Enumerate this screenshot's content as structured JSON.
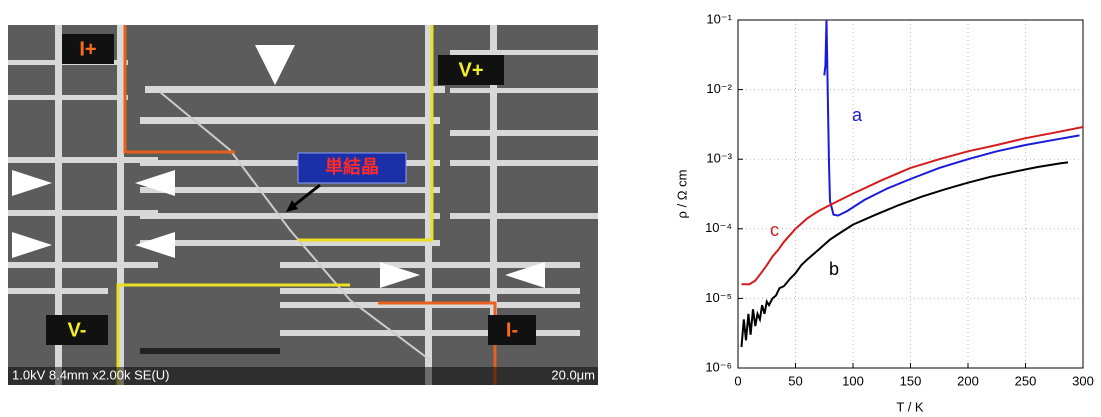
{
  "image": {
    "labels": [
      "I+",
      "V+",
      "V-",
      "I-"
    ],
    "callout": "単結晶",
    "footer": "1.0kV 8.4mm x2.00k SE(U)",
    "scale": "20.0μm"
  },
  "chart_data": {
    "type": "line",
    "log_y": true,
    "grid": true,
    "xlabel": "T / K",
    "ylabel": "ρ / Ω cm",
    "xlim": [
      0,
      300
    ],
    "xticks": [
      0,
      50,
      100,
      150,
      200,
      250,
      300
    ],
    "ylim": [
      1e-06,
      0.1
    ],
    "yticks": [
      {
        "value": 1e-06,
        "label": "10⁻⁶"
      },
      {
        "value": 1e-05,
        "label": "10⁻⁵"
      },
      {
        "value": 0.0001,
        "label": "10⁻⁴"
      },
      {
        "value": 0.001,
        "label": "10⁻³"
      },
      {
        "value": 0.01,
        "label": "10⁻²"
      },
      {
        "value": 0.1,
        "label": "10⁻¹"
      }
    ],
    "series": [
      {
        "name": "a",
        "color": "#1a1adb",
        "x": [
          75,
          76,
          77,
          78,
          79,
          80,
          83,
          87,
          95,
          110,
          130,
          150,
          175,
          200,
          225,
          250,
          275,
          297
        ],
        "values": [
          0.016,
          0.022,
          0.1,
          0.01,
          0.001,
          0.00025,
          0.00016,
          0.000155,
          0.00018,
          0.00026,
          0.00038,
          0.00052,
          0.00075,
          0.001,
          0.0013,
          0.0016,
          0.0019,
          0.0022
        ]
      },
      {
        "name": "b",
        "color": "#000000",
        "x": [
          3,
          5,
          7,
          9,
          11,
          13,
          15,
          17,
          19,
          21,
          23,
          25,
          27,
          30,
          33,
          36,
          40,
          45,
          50,
          55,
          60,
          70,
          80,
          90,
          100,
          120,
          140,
          160,
          180,
          200,
          220,
          240,
          260,
          280,
          287
        ],
        "values": [
          2e-06,
          5e-06,
          2.5e-06,
          6e-06,
          3e-06,
          7e-06,
          4e-06,
          6e-06,
          5e-06,
          8e-06,
          6e-06,
          9e-06,
          8e-06,
          1e-05,
          1.1e-05,
          1.4e-05,
          1.5e-05,
          1.9e-05,
          2.3e-05,
          3e-05,
          3.6e-05,
          5e-05,
          7e-05,
          9e-05,
          0.000115,
          0.00016,
          0.00022,
          0.00029,
          0.00037,
          0.00046,
          0.00056,
          0.00066,
          0.00077,
          0.00087,
          0.0009
        ]
      },
      {
        "name": "c",
        "color": "#d41c1c",
        "x": [
          3,
          10,
          15,
          20,
          25,
          30,
          35,
          40,
          50,
          60,
          70,
          80,
          100,
          125,
          150,
          175,
          200,
          225,
          250,
          275,
          300
        ],
        "values": [
          1.6e-05,
          1.6e-05,
          1.8e-05,
          2.3e-05,
          3e-05,
          4e-05,
          5e-05,
          6.5e-05,
          0.0001,
          0.00014,
          0.00018,
          0.00022,
          0.00032,
          0.0005,
          0.00075,
          0.001,
          0.0013,
          0.0016,
          0.002,
          0.0024,
          0.0029
        ]
      }
    ]
  }
}
